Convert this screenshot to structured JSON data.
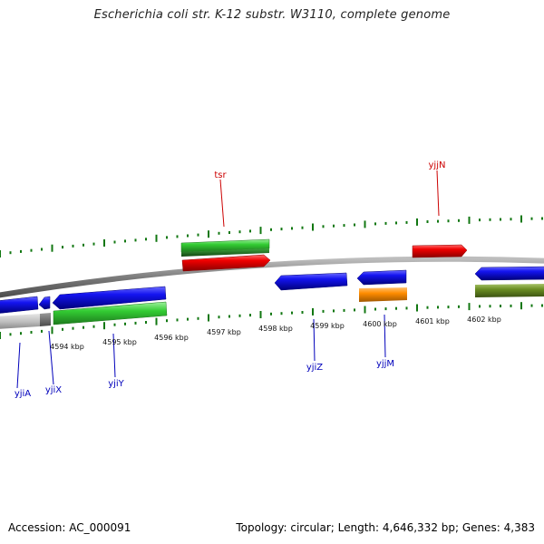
{
  "title": "Escherichia coli str. K-12 substr. W3110, complete genome",
  "footer": {
    "accession": "Accession: AC_000091",
    "topology": "Topology: circular; Length: 4,646,332 bp; Genes: 4,383"
  },
  "colors": {
    "forward_label": "#cc0000",
    "reverse_label": "#0000bb",
    "ticks": "#117711",
    "backbone": "#8a8a8a",
    "blue_gene": "#0a0ae0",
    "red_gene": "#ee0000",
    "green_gene": "#33cc33",
    "olive_gene": "#6b8e23",
    "orange_gene": "#ff8c00",
    "grey_gene": "#bdbdbd"
  },
  "kbp_labels": [
    "4594 kbp",
    "4595 kbp",
    "4596 kbp",
    "4597 kbp",
    "4598 kbp",
    "4599 kbp",
    "4600 kbp",
    "4601 kbp",
    "4602 kbp"
  ],
  "gene_labels": {
    "tsr": "tsr",
    "yjjN": "yjjN",
    "yjiA": "yjiA",
    "yjiX": "yjiX",
    "yjiY": "yjiY",
    "yjiZ": "yjiZ",
    "yjjM": "yjjM"
  }
}
